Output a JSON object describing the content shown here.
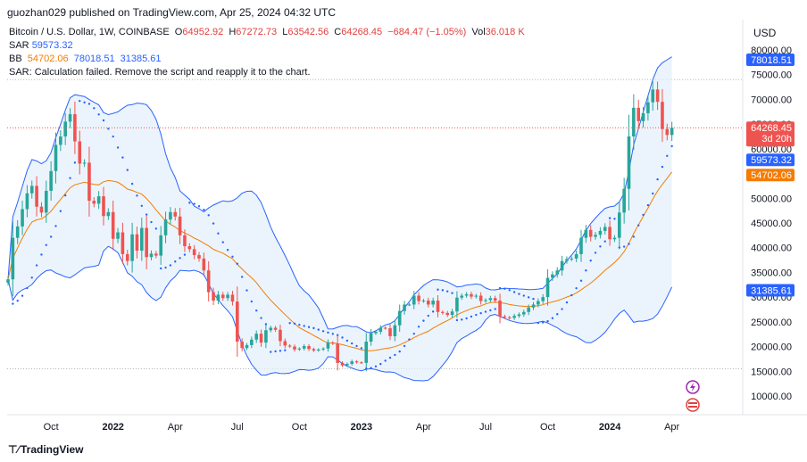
{
  "header": {
    "published": "guozhan029 published on TradingView.com, Apr 25, 2024 04:32 UTC"
  },
  "legend": {
    "symbol": "Bitcoin / U.S. Dollar, 1W, COINBASE",
    "ohlc": [
      {
        "k": "O",
        "v": "64952.92"
      },
      {
        "k": "H",
        "v": "67272.73"
      },
      {
        "k": "L",
        "v": "63542.56"
      },
      {
        "k": "C",
        "v": "64268.45"
      }
    ],
    "change": "−684.47 (−1.05%)",
    "vol_label": "Vol",
    "vol": "36.018 K",
    "sar_label": "SAR",
    "sar_value": "59573.32",
    "bb_label": "BB",
    "bb_basis": "54702.06",
    "bb_upper": "78018.51",
    "bb_lower": "31385.61",
    "error": "SAR: Calculation failed. Remove the script and reapply it to the chart."
  },
  "currency": "USD",
  "brand": "TradingView",
  "colors": {
    "up": "#26a69a",
    "down": "#ef5350",
    "bb": "#2962ff",
    "basis": "#f57c00",
    "sar": "#2962ff",
    "fill": "#e3f0fb",
    "grid": "#f0f3fa"
  },
  "chart_data": {
    "type": "candlestick",
    "y_ticks": [
      10000,
      15000,
      20000,
      25000,
      30000,
      35000,
      40000,
      45000,
      50000,
      55000,
      60000,
      65000,
      70000,
      75000,
      80000
    ],
    "y_tick_labels": [
      "10000.00",
      "15000.00",
      "20000.00",
      "25000.00",
      "30000.00",
      "35000.00",
      "40000.00",
      "45000.00",
      "50000.00",
      "55000.00",
      "60000.00",
      "65000.00",
      "70000.00",
      "75000.00",
      "80000.00"
    ],
    "x_ticks": [
      {
        "label": "Oct",
        "week": 9
      },
      {
        "label": "2022",
        "week": 22
      },
      {
        "label": "Apr",
        "week": 35
      },
      {
        "label": "Jul",
        "week": 48
      },
      {
        "label": "Oct",
        "week": 61
      },
      {
        "label": "2023",
        "week": 74
      },
      {
        "label": "Apr",
        "week": 87
      },
      {
        "label": "Jul",
        "week": 100
      },
      {
        "label": "Oct",
        "week": 113
      },
      {
        "label": "2024",
        "week": 126
      },
      {
        "label": "Apr",
        "week": 139
      }
    ],
    "price_labels": {
      "bb_upper": "78018.51",
      "last": "64268.45",
      "countdown": "3d 20h",
      "sar": "59573.32",
      "basis": "54702.06",
      "bb_lower": "31385.61"
    },
    "h_lines": [
      74000,
      15500
    ],
    "closes": [
      33600,
      42000,
      44300,
      47800,
      51000,
      52500,
      48300,
      47100,
      51500,
      55500,
      60800,
      62500,
      65500,
      67000,
      61500,
      57000,
      57200,
      49500,
      48900,
      50400,
      46400,
      47200,
      41800,
      43100,
      38700,
      37300,
      42700,
      39400,
      44000,
      38100,
      38800,
      38400,
      42500,
      45700,
      47200,
      46300,
      42500,
      40300,
      39700,
      38500,
      37800,
      35400,
      31000,
      29300,
      30500,
      29800,
      30500,
      29100,
      21000,
      19700,
      20300,
      21400,
      22600,
      20800,
      23300,
      23800,
      23400,
      21100,
      20200,
      20000,
      19400,
      19600,
      20100,
      19500,
      19200,
      19400,
      19600,
      20800,
      20600,
      16700,
      16200,
      16500,
      17000,
      16800,
      16700,
      21000,
      22700,
      23000,
      23800,
      23700,
      22100,
      24300,
      27200,
      28500,
      28500,
      30300,
      29200,
      29300,
      28500,
      29300,
      27000,
      26800,
      26400,
      27100,
      29900,
      30300,
      30600,
      30100,
      30300,
      29200,
      29400,
      29800,
      29300,
      26100,
      25900,
      25800,
      26200,
      26500,
      27000,
      27900,
      28500,
      29200,
      30000,
      33900,
      34600,
      35400,
      37300,
      37700,
      37800,
      38700,
      42000,
      43600,
      42200,
      42600,
      43400,
      44200,
      41700,
      42000,
      47100,
      51900,
      62500,
      68300,
      65600,
      67200,
      69400,
      72000,
      69500,
      64000,
      62800,
      64268
    ]
  }
}
